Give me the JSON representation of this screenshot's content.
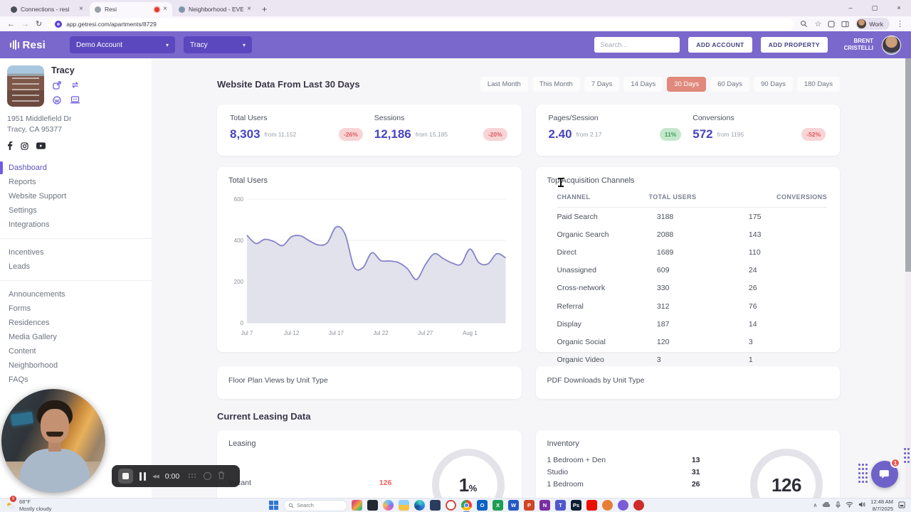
{
  "icons": {
    "close": "×",
    "plus": "+",
    "back": "←",
    "forward": "→",
    "refresh": "↻",
    "kebab": "⋮",
    "star": "☆",
    "chevron_down": "▾",
    "minimize": "–",
    "maximize": "▢",
    "window_close": "×",
    "menu_up": "∧",
    "rewind": "◀◀"
  },
  "colors": {
    "header_purple": "#7a68cc",
    "select_purple": "#5b48be",
    "accent_indigo": "#4744c0",
    "active_filter": "#e0897c",
    "negative": "#e0595c",
    "positive": "#3e9e5b",
    "chart_line": "#8583c9",
    "chart_fill": "#dcdde9",
    "chat_purple": "#6e62c9",
    "vacant_red": "#f0625f"
  },
  "browser": {
    "tabs": [
      {
        "title": "Connections - resi",
        "fav": "#4a4f5a"
      },
      {
        "title": "Resi",
        "fav": "#9aa0a8",
        "cls": "active",
        "recording": true
      },
      {
        "title": "Neighborhood - EVER West La",
        "fav": "#7d98a8"
      }
    ],
    "url": "app.getresi.com/apartments/8729",
    "profile_label": "Work"
  },
  "header": {
    "brand": "Resi",
    "account_select": "Demo Account",
    "property_select": "Tracy",
    "search_placeholder": "Search...",
    "add_account": "ADD ACCOUNT",
    "add_property": "ADD PROPERTY",
    "user_first": "BRENT",
    "user_last": "CRISTELLI"
  },
  "sidebar": {
    "property_name": "Tracy",
    "address_line1": "1951 Middlefield Dr",
    "address_line2": "Tracy, CA 95377",
    "nav_groups": [
      {
        "items": [
          {
            "label": "Dashboard",
            "cls": "active"
          },
          {
            "label": "Reports"
          },
          {
            "label": "Website Support"
          },
          {
            "label": "Settings"
          },
          {
            "label": "Integrations"
          }
        ]
      },
      {
        "items": [
          {
            "label": "Incentives"
          },
          {
            "label": "Leads"
          }
        ]
      },
      {
        "items": [
          {
            "label": "Announcements"
          },
          {
            "label": "Forms"
          },
          {
            "label": "Residences"
          },
          {
            "label": "Media Gallery"
          },
          {
            "label": "Content"
          },
          {
            "label": "Neighborhood"
          },
          {
            "label": "FAQs"
          }
        ]
      }
    ]
  },
  "main": {
    "title": "Website Data From Last 30 Days",
    "filters": [
      {
        "label": "Last Month"
      },
      {
        "label": "This Month"
      },
      {
        "label": "7 Days"
      },
      {
        "label": "14 Days"
      },
      {
        "label": "30 Days",
        "cls": "active"
      },
      {
        "label": "60 Days"
      },
      {
        "label": "90 Days"
      },
      {
        "label": "180 Days"
      }
    ],
    "stats_a": [
      {
        "label": "Total Users",
        "value": "8,303",
        "from": "from 11,152",
        "badge": "-26%",
        "trend": "down"
      },
      {
        "label": "Sessions",
        "value": "12,186",
        "from": "from 15,185",
        "badge": "-20%",
        "trend": "down"
      }
    ],
    "stats_b": [
      {
        "label": "Pages/Session",
        "value": "2.40",
        "from": "from 2.17",
        "badge": "11%",
        "trend": "up"
      },
      {
        "label": "Conversions",
        "value": "572",
        "from": "from 1195",
        "badge": "-52%",
        "trend": "down"
      }
    ],
    "chart_data": {
      "type": "area",
      "title": "Total Users",
      "values": [
        425,
        385,
        405,
        395,
        375,
        418,
        422,
        398,
        378,
        388,
        465,
        430,
        272,
        268,
        340,
        302,
        300,
        292,
        262,
        210,
        282,
        335,
        312,
        290,
        285,
        358,
        292,
        286,
        335,
        315
      ],
      "x_tick_labels": [
        "Jul 7",
        "Jul 12",
        "Jul 17",
        "Jul 22",
        "Jul 27",
        "Aug 1"
      ],
      "x_tick_indices": [
        0,
        5,
        10,
        15,
        20,
        25
      ],
      "ylim": [
        0,
        600
      ],
      "yticks": [
        0,
        200,
        400,
        600
      ],
      "line_color": "#8583c9",
      "fill_color": "#dcdde9"
    },
    "acquisition": {
      "title": "Top Acquisition Channels",
      "columns": [
        "CHANNEL",
        "TOTAL USERS",
        "CONVERSIONS"
      ],
      "rows": [
        [
          "Paid Search",
          "3188",
          "175"
        ],
        [
          "Organic Search",
          "2088",
          "143"
        ],
        [
          "Direct",
          "1689",
          "110"
        ],
        [
          "Unassigned",
          "609",
          "24"
        ],
        [
          "Cross-network",
          "330",
          "26"
        ],
        [
          "Referral",
          "312",
          "76"
        ],
        [
          "Display",
          "187",
          "14"
        ],
        [
          "Organic Social",
          "120",
          "3"
        ],
        [
          "Organic Video",
          "3",
          "1"
        ]
      ]
    },
    "floor_plan_title": "Floor Plan Views by Unit Type",
    "pdf_title": "PDF Downloads by Unit Type",
    "leasing_section_title": "Current Leasing Data",
    "leasing": {
      "title": "Leasing",
      "vacant_label": "Vacant",
      "vacant_value": "126",
      "donut_value": "1",
      "donut_suffix": "%"
    },
    "inventory": {
      "title": "Inventory",
      "rows": [
        [
          "1 Bedroom + Den",
          "13"
        ],
        [
          "Studio",
          "31"
        ],
        [
          "1 Bedroom",
          "26"
        ]
      ],
      "donut_value": "126"
    }
  },
  "recorder": {
    "time": "0:00"
  },
  "chat": {
    "badge": "1"
  },
  "taskbar": {
    "weather_temp": "68°F",
    "weather_desc": "Mostly cloudy",
    "weather_badge": "9",
    "search_placeholder": "Search",
    "time": "12:48 AM",
    "date": "8/7/2025",
    "apps": [
      {
        "glyph": "",
        "bg": "linear-gradient(135deg,#e2556e 25%,#f2a73b 55%,#37b87a 85%)"
      },
      {
        "glyph": "",
        "bg": "#23272e"
      },
      {
        "glyph": "",
        "bg": "conic-gradient(#62c4f5,#8a6ef0,#e86aa6,#f2b84b,#62c4f5)",
        "cls": "round"
      },
      {
        "glyph": "",
        "bg": "linear-gradient(180deg,#8ed0f8 45%,#f6c445 45%)"
      },
      {
        "glyph": "",
        "bg": "conic-gradient(#3bd5c3,#2b7de0,#174a8f,#3bd5c3)",
        "cls": "round"
      },
      {
        "glyph": "",
        "bg": "#2a3d5f"
      },
      {
        "glyph": "",
        "bg": "#fff",
        "cls": "round ring"
      },
      {
        "glyph": "",
        "bg": "conic-gradient(#ea4335 0 33%,#fbbc05 33% 66%,#34a853 66% 100%)",
        "cls": "round active chrome"
      },
      {
        "glyph": "O",
        "bg": "#0b62c4"
      },
      {
        "glyph": "X",
        "bg": "#1d9e55"
      },
      {
        "glyph": "W",
        "bg": "#2458c5"
      },
      {
        "glyph": "P",
        "bg": "#d04426"
      },
      {
        "glyph": "N",
        "bg": "#7a2ea0"
      },
      {
        "glyph": "T",
        "bg": "#5059c9"
      },
      {
        "glyph": "Ps",
        "bg": "#0b1f33"
      },
      {
        "glyph": "",
        "bg": "#eb1000"
      },
      {
        "glyph": "",
        "bg": "#e87d35",
        "cls": "round"
      },
      {
        "glyph": "",
        "bg": "#7b5cd6",
        "cls": "round"
      },
      {
        "glyph": "",
        "bg": "#cf2b2b",
        "cls": "round"
      }
    ]
  }
}
